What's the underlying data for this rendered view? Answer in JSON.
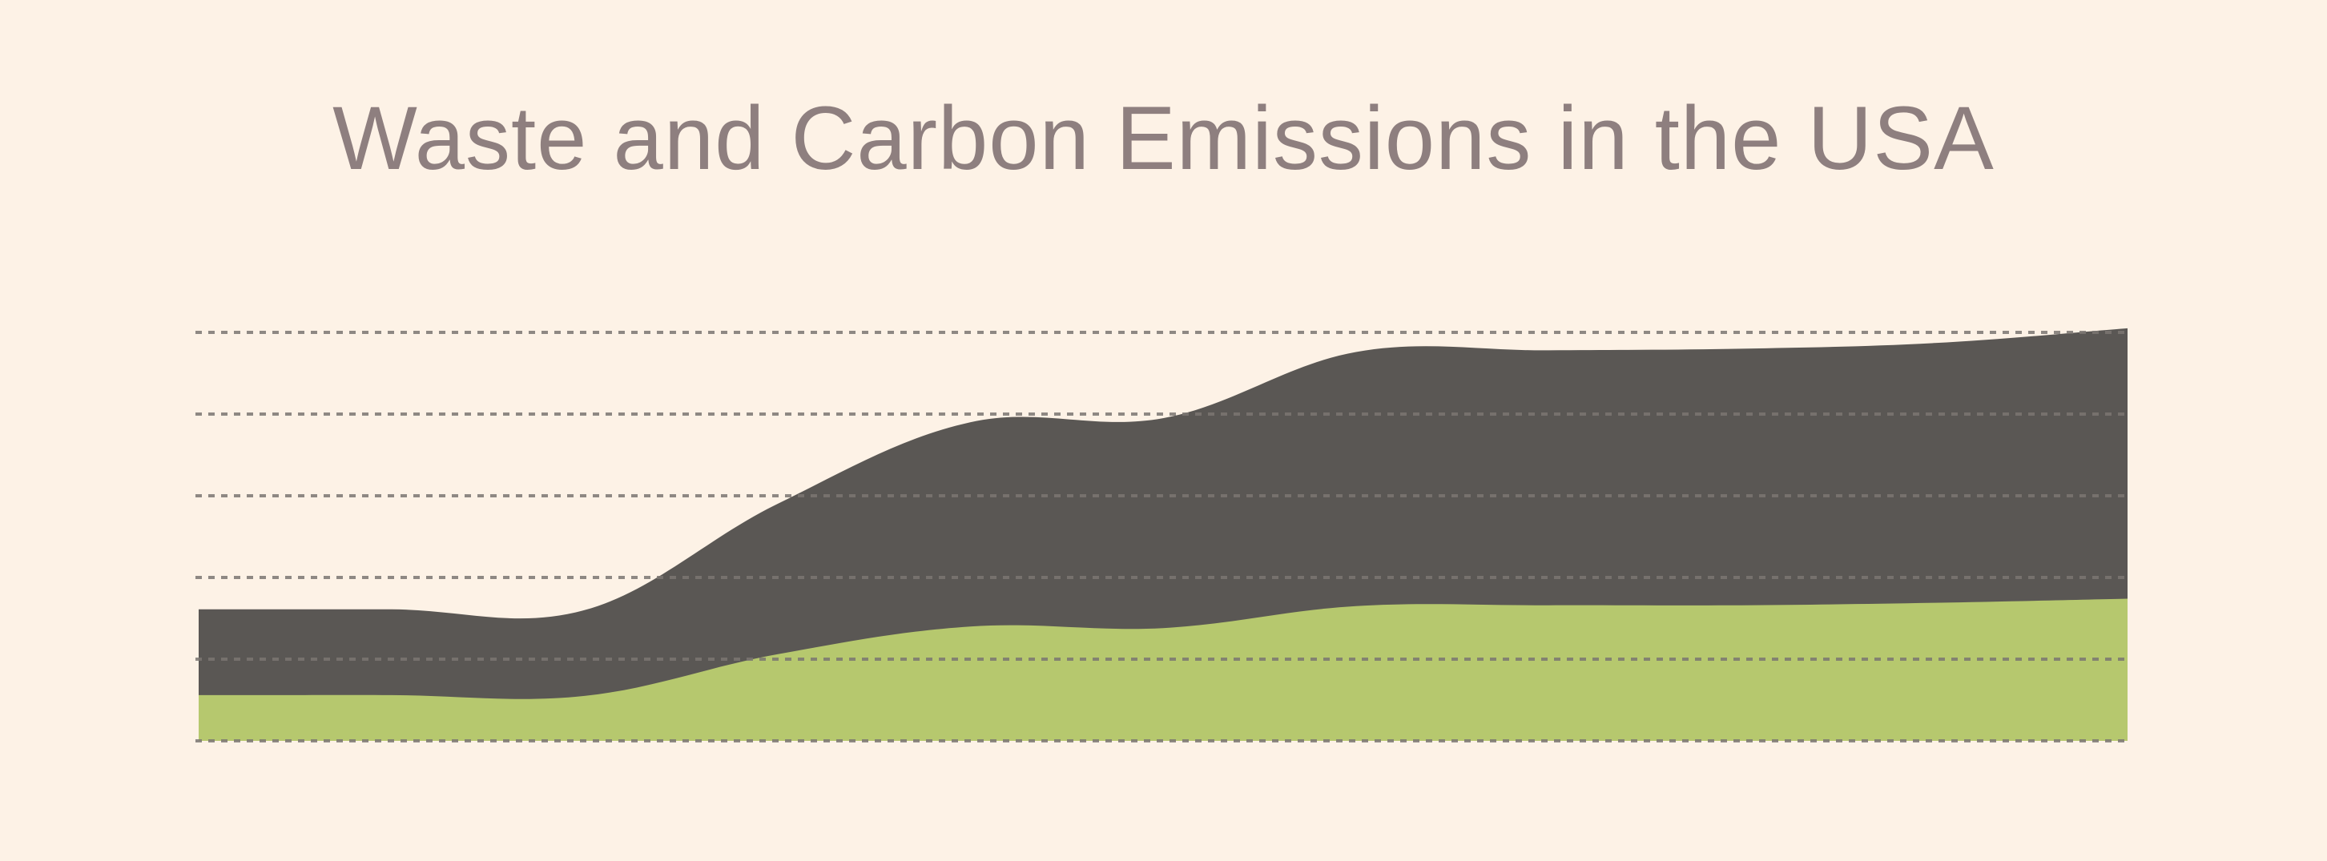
{
  "colors": {
    "background": "#fdf2e6",
    "title": "#8e7f7f",
    "carbon": "#5a5754",
    "waste": "#b6c86e",
    "grid": "#7b7672"
  },
  "chart_data": {
    "type": "area",
    "stacked": true,
    "title": "Waste and Carbon Emissions in the USA",
    "xlabel": "",
    "ylabel": "",
    "grid": true,
    "grid_style": "dashed",
    "legend": "none",
    "ylim": [
      0,
      5
    ],
    "x": [
      0,
      1,
      2,
      3,
      4,
      5,
      6,
      7,
      8,
      9,
      10
    ],
    "series": [
      {
        "key": "waste",
        "values": [
          0.56,
          0.56,
          0.55,
          1.06,
          1.4,
          1.38,
          1.65,
          1.66,
          1.66,
          1.69,
          1.74
        ]
      },
      {
        "key": "carbon",
        "values": [
          1.05,
          1.05,
          1.05,
          1.84,
          2.5,
          2.57,
          3.11,
          3.12,
          3.14,
          3.18,
          3.31
        ]
      }
    ]
  }
}
